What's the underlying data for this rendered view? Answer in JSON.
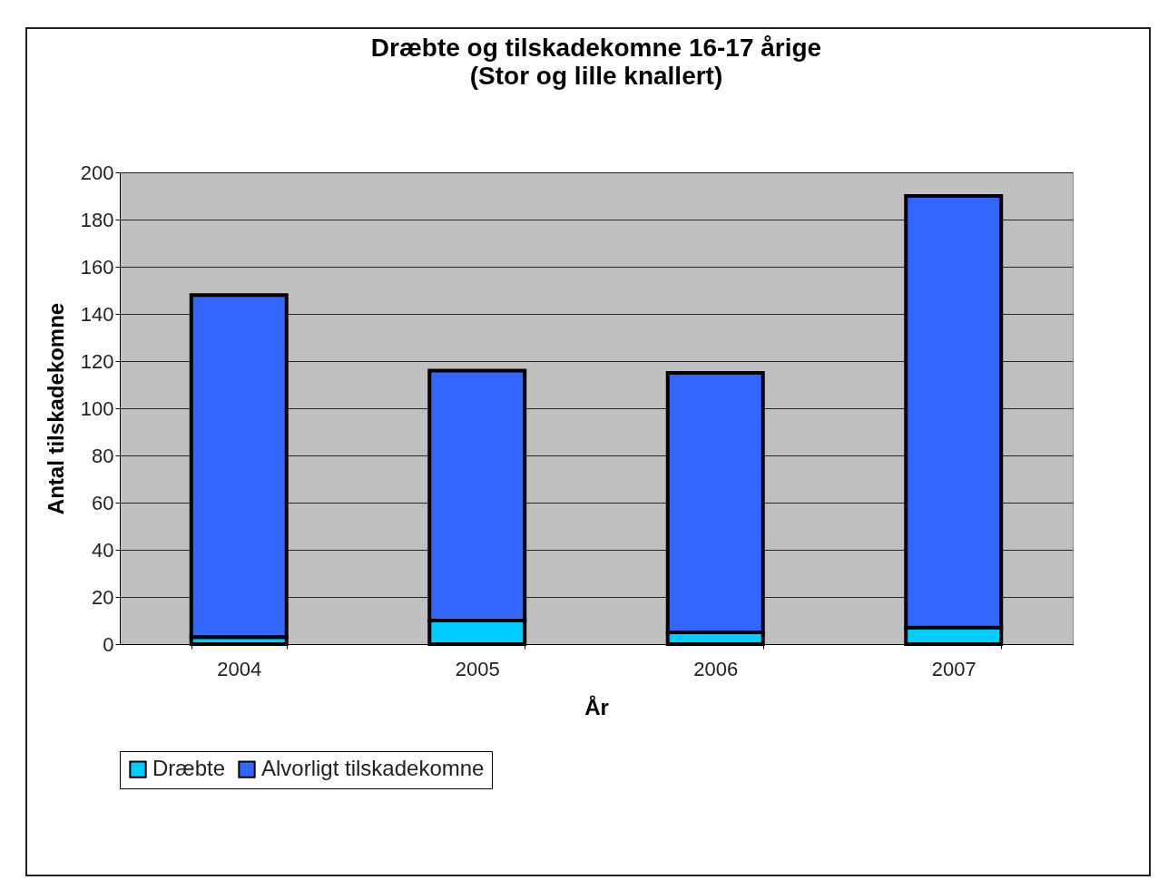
{
  "chart_data": {
    "type": "bar",
    "title": "Dræbte og tilskadekomne 16-17 årige",
    "subtitle": "(Stor og lille knallert)",
    "xlabel": "År",
    "ylabel": "Antal tilskadekomne",
    "categories": [
      "2004",
      "2005",
      "2006",
      "2007"
    ],
    "stacked": true,
    "series": [
      {
        "name": "Dræbte",
        "color": "#00ccff",
        "values": [
          3,
          10,
          5,
          7
        ]
      },
      {
        "name": "Alvorligt tilskadekomne",
        "color": "#3366ff",
        "values": [
          145,
          106,
          110,
          183
        ]
      }
    ],
    "ylim": [
      0,
      200
    ],
    "yticks": [
      0,
      20,
      40,
      60,
      80,
      100,
      120,
      140,
      160,
      180,
      200
    ],
    "grid": "y",
    "legend": "bottom"
  }
}
